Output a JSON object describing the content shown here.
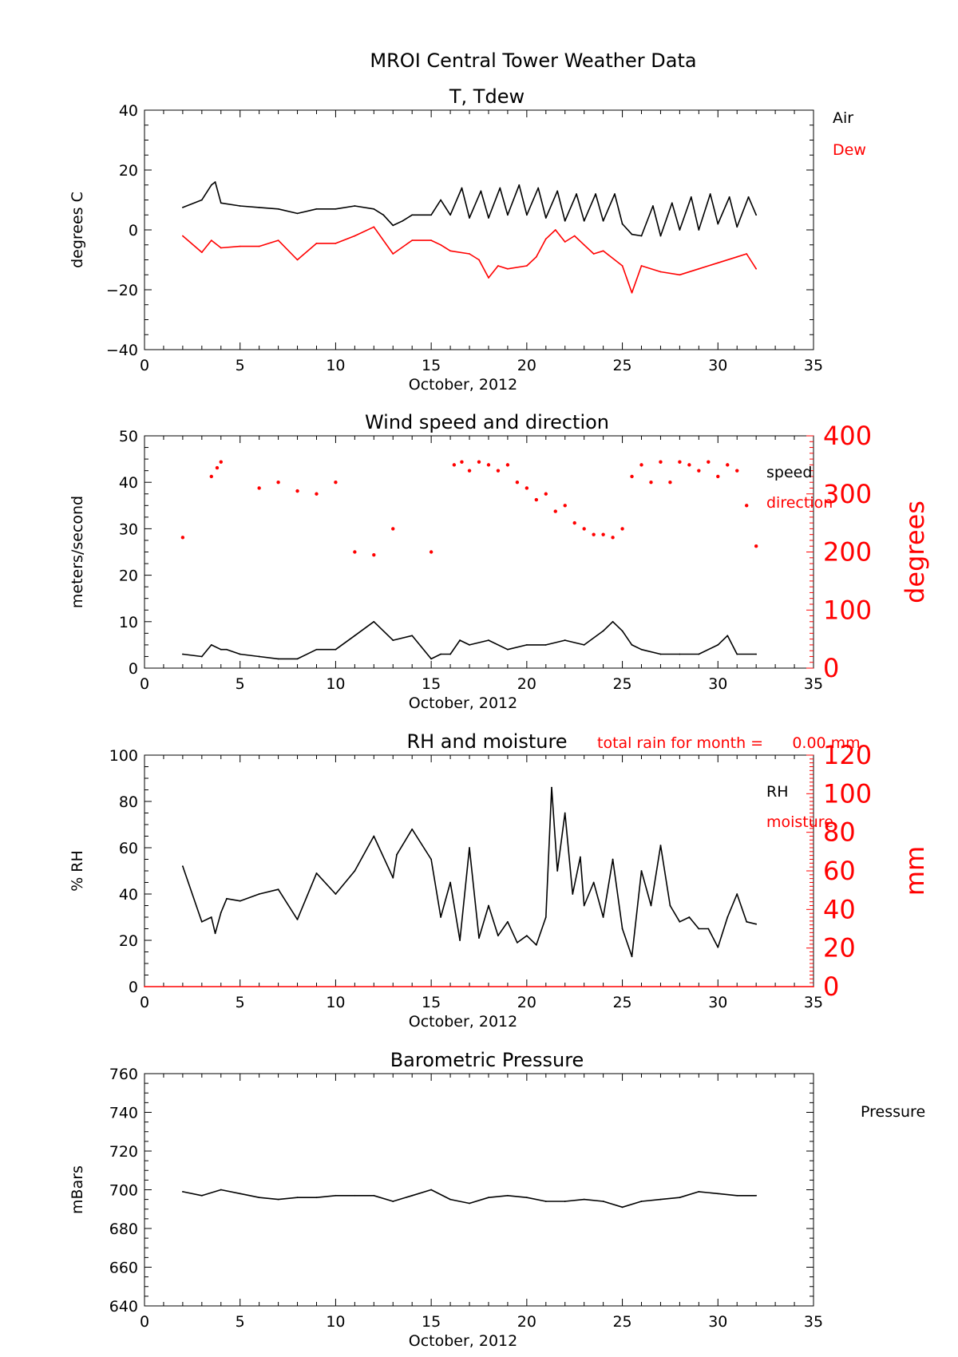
{
  "figure_title": "MROI Central Tower Weather Data",
  "colors": {
    "primary": "#000000",
    "secondary": "#ff0000"
  },
  "chart_data": [
    {
      "type": "line",
      "title": "T, Tdew",
      "xlabel": "October, 2012",
      "ylabel": "degrees C",
      "xlim": [
        0,
        35
      ],
      "ylim": [
        -40,
        40
      ],
      "xticks": [
        "0",
        "5",
        "10",
        "15",
        "20",
        "25",
        "30",
        "35"
      ],
      "yticks": [
        "−40",
        "−20",
        "0",
        "20",
        "40"
      ],
      "legend_position": "right",
      "series": [
        {
          "name": "Air",
          "color": "#000000",
          "x": [
            2,
            3,
            3.5,
            3.7,
            4,
            5,
            6,
            7,
            8,
            9,
            10,
            11,
            12,
            12.5,
            13,
            13.5,
            14,
            15,
            15.5,
            16,
            16.6,
            17,
            17.6,
            18,
            18.6,
            19,
            19.6,
            20,
            20.6,
            21,
            21.6,
            22,
            22.6,
            23,
            23.6,
            24,
            24.6,
            25,
            25.5,
            26,
            26.6,
            27,
            27.6,
            28,
            28.6,
            29,
            29.6,
            30,
            30.6,
            31,
            31.6,
            32
          ],
          "y": [
            7.5,
            10,
            15,
            16,
            9,
            8,
            7.5,
            7,
            5.5,
            7,
            7,
            8,
            7,
            5,
            1.5,
            3,
            5,
            5,
            10,
            5,
            14,
            4,
            13,
            4,
            14,
            5,
            15,
            5,
            14,
            4,
            13,
            3,
            12,
            3,
            12,
            3,
            12,
            2,
            -1.5,
            -2,
            8,
            -2,
            9,
            0,
            11,
            0,
            12,
            2,
            11,
            1,
            11,
            5
          ]
        },
        {
          "name": "Dew",
          "color": "#ff0000",
          "x": [
            2,
            3,
            3.5,
            4,
            5,
            6,
            7,
            8,
            9,
            10,
            11,
            12,
            13,
            14,
            15,
            15.5,
            16,
            17,
            17.5,
            18,
            18.5,
            19,
            20,
            20.5,
            21,
            21.5,
            22,
            22.5,
            23,
            23.5,
            24,
            25,
            25.5,
            26,
            27,
            28,
            29,
            30,
            31,
            31.5,
            32
          ],
          "y": [
            -2,
            -7.5,
            -3.5,
            -6,
            -5.5,
            -5.5,
            -3.5,
            -10,
            -4.5,
            -4.5,
            -2,
            1,
            -8,
            -3.5,
            -3.5,
            -5,
            -7,
            -8,
            -10,
            -16,
            -12,
            -13,
            -12,
            -9,
            -3,
            0,
            -4,
            -2,
            -5,
            -8,
            -7,
            -12,
            -21,
            -12,
            -14,
            -15,
            -13,
            -11,
            -9,
            -8,
            -13
          ]
        }
      ]
    },
    {
      "type": "scatter",
      "title": "Wind speed and direction",
      "xlabel": "October, 2012",
      "ylabel": "meters/second",
      "y2label": "degrees",
      "xlim": [
        0,
        35
      ],
      "ylim": [
        0,
        50
      ],
      "y2lim": [
        0,
        400
      ],
      "xticks": [
        "0",
        "5",
        "10",
        "15",
        "20",
        "25",
        "30",
        "35"
      ],
      "yticks": [
        "0",
        "10",
        "20",
        "30",
        "40",
        "50"
      ],
      "y2ticks": [
        "0",
        "100",
        "200",
        "300",
        "400"
      ],
      "legend_position": "right",
      "series": [
        {
          "name": "speed",
          "color": "#000000",
          "axis": "left",
          "x": [
            2,
            3,
            3.5,
            4,
            4.3,
            5,
            6,
            7,
            8,
            9,
            10,
            11,
            12,
            13,
            14,
            15,
            15.5,
            16,
            16.5,
            17,
            18,
            19,
            20,
            21,
            22,
            23,
            24,
            24.5,
            25,
            25.5,
            26,
            27,
            28,
            29,
            30,
            30.5,
            31,
            32
          ],
          "y": [
            3,
            2.5,
            5,
            4,
            4,
            3,
            2.5,
            2,
            2,
            4,
            4,
            7,
            10,
            6,
            7,
            2,
            3,
            3,
            6,
            5,
            6,
            4,
            5,
            5,
            6,
            5,
            8,
            10,
            8,
            5,
            4,
            3,
            3,
            3,
            5,
            7,
            3,
            3
          ]
        },
        {
          "name": "direction",
          "color": "#ff0000",
          "axis": "right",
          "x": [
            2,
            3.5,
            3.8,
            4,
            6,
            7,
            8,
            9,
            10,
            11,
            12,
            13,
            15,
            16.2,
            16.6,
            17,
            17.5,
            18,
            18.5,
            19,
            19.5,
            20,
            20.5,
            21,
            21.5,
            22,
            22.5,
            23,
            23.5,
            24,
            24.5,
            25,
            25.5,
            26,
            26.5,
            27,
            27.5,
            28,
            28.5,
            29,
            29.5,
            30,
            30.5,
            31,
            31.5,
            32
          ],
          "y": [
            225,
            330,
            345,
            355,
            310,
            320,
            305,
            300,
            320,
            200,
            195,
            240,
            200,
            350,
            355,
            340,
            355,
            350,
            340,
            350,
            320,
            310,
            290,
            300,
            270,
            280,
            250,
            240,
            230,
            230,
            225,
            240,
            330,
            350,
            320,
            355,
            320,
            355,
            350,
            340,
            355,
            330,
            350,
            340,
            280,
            210
          ]
        }
      ]
    },
    {
      "type": "line",
      "title": "RH and moisture",
      "annotation": "total rain for month =      0.00 mm",
      "xlabel": "October, 2012",
      "ylabel": "% RH",
      "y2label": "mm",
      "xlim": [
        0,
        35
      ],
      "ylim": [
        0,
        100
      ],
      "y2lim": [
        0,
        120
      ],
      "xticks": [
        "0",
        "5",
        "10",
        "15",
        "20",
        "25",
        "30",
        "35"
      ],
      "yticks": [
        "0",
        "20",
        "40",
        "60",
        "80",
        "100"
      ],
      "y2ticks": [
        "0",
        "20",
        "40",
        "60",
        "80",
        "100",
        "120"
      ],
      "legend_position": "right",
      "series": [
        {
          "name": "RH",
          "color": "#000000",
          "axis": "left",
          "x": [
            2,
            3,
            3.5,
            3.7,
            4,
            4.3,
            5,
            6,
            7,
            8,
            9,
            10,
            11,
            12,
            13,
            13.2,
            14,
            15,
            15.5,
            16,
            16.5,
            17,
            17.5,
            18,
            18.5,
            19,
            19.5,
            20,
            20.5,
            21,
            21.3,
            21.6,
            22,
            22.4,
            22.8,
            23,
            23.5,
            24,
            24.5,
            25,
            25.5,
            26,
            26.5,
            27,
            27.5,
            28,
            28.5,
            29,
            29.5,
            30,
            30.5,
            31,
            31.5,
            32
          ],
          "y": [
            52,
            28,
            30,
            23,
            32,
            38,
            37,
            40,
            42,
            29,
            49,
            40,
            50,
            65,
            47,
            57,
            68,
            55,
            30,
            45,
            20,
            60,
            21,
            35,
            22,
            28,
            19,
            22,
            18,
            30,
            86,
            50,
            75,
            40,
            56,
            35,
            45,
            30,
            55,
            25,
            13,
            50,
            35,
            61,
            35,
            28,
            30,
            25,
            25,
            17,
            30,
            40,
            28,
            27
          ]
        },
        {
          "name": "moisture",
          "color": "#ff0000",
          "axis": "right",
          "x": [
            0,
            35
          ],
          "y": [
            0,
            0
          ]
        }
      ]
    },
    {
      "type": "line",
      "title": "Barometric Pressure",
      "xlabel": "October, 2012",
      "ylabel": "mBars",
      "xlim": [
        0,
        35
      ],
      "ylim": [
        640,
        760
      ],
      "xticks": [
        "0",
        "5",
        "10",
        "15",
        "20",
        "25",
        "30",
        "35"
      ],
      "yticks": [
        "640",
        "660",
        "680",
        "700",
        "720",
        "740",
        "760"
      ],
      "legend_position": "right",
      "series": [
        {
          "name": "Pressure",
          "color": "#000000",
          "x": [
            2,
            3,
            4,
            5,
            6,
            7,
            8,
            9,
            10,
            11,
            12,
            13,
            14,
            15,
            16,
            17,
            18,
            19,
            20,
            21,
            22,
            23,
            24,
            25,
            26,
            27,
            28,
            29,
            30,
            31,
            32
          ],
          "y": [
            699,
            697,
            700,
            698,
            696,
            695,
            696,
            696,
            697,
            697,
            697,
            694,
            697,
            700,
            695,
            693,
            696,
            697,
            696,
            694,
            694,
            695,
            694,
            691,
            694,
            695,
            696,
            699,
            698,
            697,
            697
          ]
        }
      ]
    }
  ]
}
